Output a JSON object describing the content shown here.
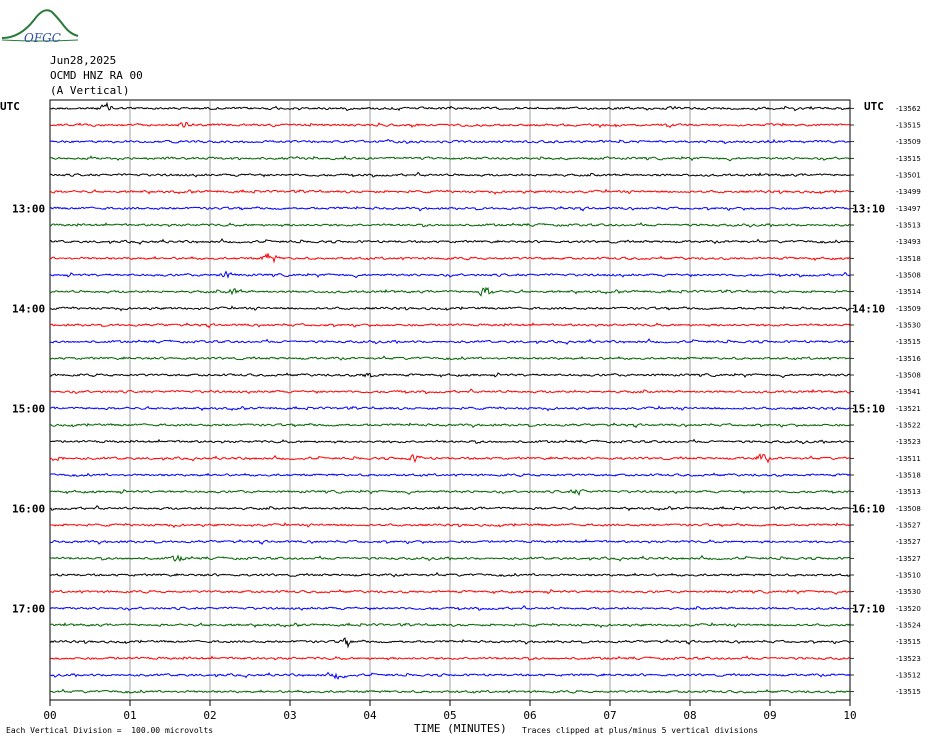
{
  "header": {
    "date": "Jun28,2025",
    "station": "OCMD HNZ RA 00",
    "component": "(A Vertical)",
    "left_tz": "UTC",
    "right_tz": "UTC"
  },
  "logo": {
    "text": "OFGC",
    "icon": "mountain-wave-logo",
    "color": "#2a7a3a",
    "text_color": "#2b4fa8"
  },
  "footer": {
    "scale_note": "Each Vertical Division =  100.00 microvolts",
    "xlabel": "TIME (MINUTES)",
    "clip_note": "Traces clipped at plus/minus 5 vertical divisions"
  },
  "chart_data": {
    "type": "line",
    "title": "OCMD HNZ RA 00",
    "xlabel": "TIME (MINUTES)",
    "xlim": [
      0,
      10
    ],
    "x_ticks": [
      "00",
      "01",
      "02",
      "03",
      "04",
      "05",
      "06",
      "07",
      "08",
      "09",
      "10"
    ],
    "trace_colors": [
      "#000000",
      "#ff0000",
      "#0000ff",
      "#006400"
    ],
    "left_hour_labels": [
      {
        "row": 6,
        "label": "13:00"
      },
      {
        "row": 12,
        "label": "14:00"
      },
      {
        "row": 18,
        "label": "15:00"
      },
      {
        "row": 24,
        "label": "16:00"
      },
      {
        "row": 30,
        "label": "17:00"
      }
    ],
    "right_hour_labels": [
      {
        "row": 6,
        "label": "13:10"
      },
      {
        "row": 12,
        "label": "14:10"
      },
      {
        "row": 18,
        "label": "15:10"
      },
      {
        "row": 24,
        "label": "16:10"
      },
      {
        "row": 30,
        "label": "17:10"
      }
    ],
    "right_values": [
      "-13562",
      "-13515",
      "-13509",
      "-13515",
      "-13501",
      "-13499",
      "-13497",
      "-13513",
      "-13493",
      "-13518",
      "-13508",
      "-13514",
      "-13509",
      "-13530",
      "-13515",
      "-13516",
      "-13508",
      "-13541",
      "-13521",
      "-13522",
      "-13523",
      "-13511",
      "-13518",
      "-13513",
      "-13508",
      "-13527",
      "-13527",
      "-13527",
      "-13510",
      "-13530",
      "-13520",
      "-13524",
      "-13515",
      "-13523",
      "-13512",
      "-13515"
    ],
    "events": [
      {
        "row": 0,
        "x": 0.7,
        "amp": 2.2
      },
      {
        "row": 1,
        "x": 1.7,
        "amp": 1.5
      },
      {
        "row": 9,
        "x": 2.75,
        "amp": 3.2
      },
      {
        "row": 10,
        "x": 2.2,
        "amp": 1.5
      },
      {
        "row": 11,
        "x": 5.45,
        "amp": 2.6
      },
      {
        "row": 11,
        "x": 2.3,
        "amp": 1.5
      },
      {
        "row": 16,
        "x": 4.0,
        "amp": 1.6
      },
      {
        "row": 21,
        "x": 4.55,
        "amp": 1.6
      },
      {
        "row": 21,
        "x": 8.9,
        "amp": 1.8
      },
      {
        "row": 21,
        "x": 0.1,
        "amp": 1.5
      },
      {
        "row": 23,
        "x": 6.6,
        "amp": 1.4
      },
      {
        "row": 27,
        "x": 1.6,
        "amp": 1.4
      },
      {
        "row": 32,
        "x": 3.7,
        "amp": 1.6
      },
      {
        "row": 34,
        "x": 3.6,
        "amp": 1.6
      }
    ]
  }
}
